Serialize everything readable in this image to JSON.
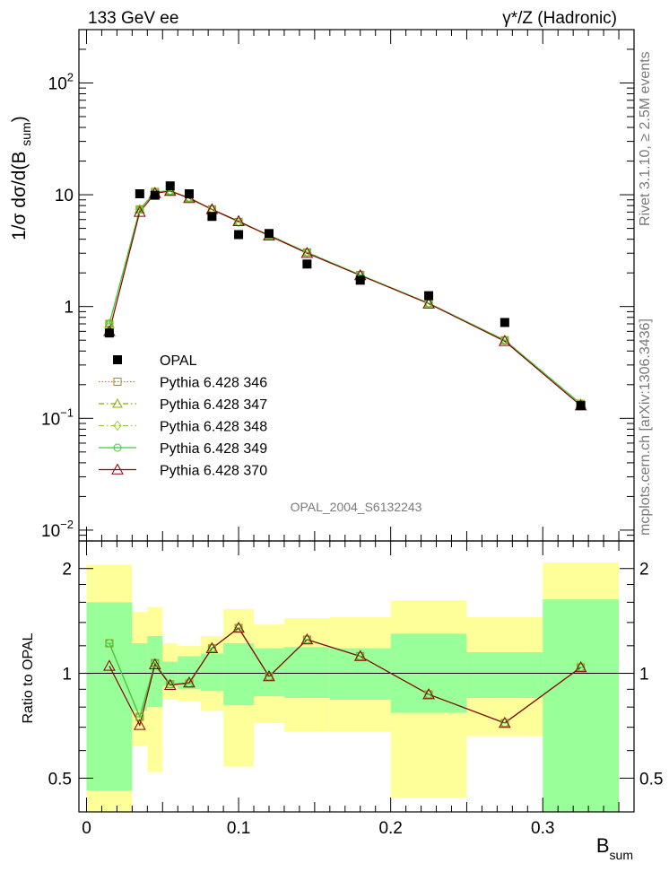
{
  "header": {
    "left": "133 GeV ee",
    "right": "γ*/Z (Hadronic)"
  },
  "side_text": {
    "rivet": "Rivet 3.1.10, ≥ 2.5M events",
    "mcplots": "mcplots.cern.ch [arXiv:1306.3436]"
  },
  "analysis_id": "OPAL_2004_S6132243",
  "colors": {
    "data": "#000000",
    "p346": "#b8860b",
    "p347": "#8aa800",
    "p348": "#9acd32",
    "p349": "#3ccc3c",
    "p370": "#8b0000",
    "band_yellow": "#ffff99",
    "band_green": "#99ff99"
  },
  "chart_data": [
    {
      "type": "scatter",
      "panel": "main",
      "ylabel": "1/σ dσ/d(B_sum)",
      "yscale": "log",
      "ylim": [
        0.008,
        300
      ],
      "xlim": [
        -0.005,
        0.36
      ],
      "yticks": [
        {
          "value": 100,
          "base": "10",
          "exp": "2"
        },
        {
          "value": 10,
          "base": "10",
          "exp": ""
        },
        {
          "value": 1,
          "base": "1",
          "exp": ""
        },
        {
          "value": 0.1,
          "base": "10",
          "exp": "−1"
        },
        {
          "value": 0.01,
          "base": "10",
          "exp": "−2"
        }
      ],
      "legend_position": "bottom-left",
      "data": {
        "name": "OPAL",
        "x": [
          0.015,
          0.035,
          0.045,
          0.055,
          0.0675,
          0.0825,
          0.1,
          0.12,
          0.145,
          0.18,
          0.225,
          0.275,
          0.325
        ],
        "y": [
          0.58,
          10.2,
          9.9,
          12.0,
          10.2,
          6.4,
          4.4,
          4.5,
          2.4,
          1.72,
          1.25,
          0.72,
          0.13
        ]
      },
      "series": [
        {
          "name": "Pythia 6.428 346",
          "style": "dotted",
          "marker": "square",
          "color_key": "p346",
          "y": [
            0.7,
            7.4,
            10.6,
            10.8,
            9.4,
            7.4,
            5.7,
            4.35,
            3.05,
            1.92,
            1.07,
            0.5,
            0.135
          ]
        },
        {
          "name": "Pythia 6.428 347",
          "style": "dashdot",
          "marker": "triangle",
          "color_key": "p347",
          "y": [
            0.7,
            7.4,
            10.6,
            10.8,
            9.4,
            7.4,
            5.7,
            4.35,
            3.05,
            1.92,
            1.07,
            0.5,
            0.135
          ]
        },
        {
          "name": "Pythia 6.428 348",
          "style": "dashdot",
          "marker": "diamond",
          "color_key": "p348",
          "y": [
            0.7,
            7.4,
            10.6,
            10.8,
            9.4,
            7.4,
            5.7,
            4.35,
            3.05,
            1.92,
            1.07,
            0.5,
            0.135
          ]
        },
        {
          "name": "Pythia 6.428 349",
          "style": "solid",
          "marker": "circle",
          "color_key": "p349",
          "y": [
            0.7,
            7.4,
            10.6,
            10.8,
            9.4,
            7.4,
            5.7,
            4.35,
            3.05,
            1.92,
            1.07,
            0.5,
            0.135
          ]
        },
        {
          "name": "Pythia 6.428 370",
          "style": "solid",
          "marker": "open-triangle",
          "color_key": "p370",
          "y": [
            0.6,
            7.0,
            10.3,
            10.8,
            9.3,
            7.4,
            5.8,
            4.3,
            3.0,
            1.9,
            1.06,
            0.49,
            0.13
          ]
        }
      ]
    },
    {
      "type": "line",
      "panel": "ratio",
      "ylabel": "Ratio to OPAL",
      "xlabel": "B_sum",
      "yscale": "log",
      "ylim": [
        0.4,
        2.4
      ],
      "xlim": [
        -0.005,
        0.36
      ],
      "yticks": [
        {
          "value": 0.5,
          "label": "0.5"
        },
        {
          "value": 1,
          "label": "1"
        },
        {
          "value": 2,
          "label": "2"
        }
      ],
      "xticks": [
        {
          "value": 0,
          "label": "0"
        },
        {
          "value": 0.1,
          "label": "0.1"
        },
        {
          "value": 0.2,
          "label": "0.2"
        },
        {
          "value": 0.3,
          "label": "0.3"
        }
      ],
      "bins": [
        {
          "lo": 0.0,
          "hi": 0.03,
          "y_lo": 0.3,
          "y_hi": 2.05,
          "g_lo": 0.46,
          "g_hi": 1.6
        },
        {
          "lo": 0.03,
          "hi": 0.04,
          "y_lo": 0.62,
          "y_hi": 1.5,
          "g_lo": 0.78,
          "g_hi": 1.22
        },
        {
          "lo": 0.04,
          "hi": 0.05,
          "y_lo": 0.52,
          "y_hi": 1.55,
          "g_lo": 0.8,
          "g_hi": 1.28
        },
        {
          "lo": 0.05,
          "hi": 0.06,
          "y_lo": 0.84,
          "y_hi": 1.22,
          "g_lo": 0.92,
          "g_hi": 1.08
        },
        {
          "lo": 0.06,
          "hi": 0.075,
          "y_lo": 0.83,
          "y_hi": 1.2,
          "g_lo": 0.9,
          "g_hi": 1.12
        },
        {
          "lo": 0.075,
          "hi": 0.09,
          "y_lo": 0.78,
          "y_hi": 1.28,
          "g_lo": 0.89,
          "g_hi": 1.14
        },
        {
          "lo": 0.09,
          "hi": 0.11,
          "y_lo": 0.54,
          "y_hi": 1.53,
          "g_lo": 0.81,
          "g_hi": 1.22
        },
        {
          "lo": 0.11,
          "hi": 0.13,
          "y_lo": 0.72,
          "y_hi": 1.38,
          "g_lo": 0.86,
          "g_hi": 1.18
        },
        {
          "lo": 0.13,
          "hi": 0.16,
          "y_lo": 0.68,
          "y_hi": 1.44,
          "g_lo": 0.85,
          "g_hi": 1.19
        },
        {
          "lo": 0.16,
          "hi": 0.2,
          "y_lo": 0.68,
          "y_hi": 1.45,
          "g_lo": 0.84,
          "g_hi": 1.18
        },
        {
          "lo": 0.2,
          "hi": 0.25,
          "y_lo": 0.44,
          "y_hi": 1.62,
          "g_lo": 0.77,
          "g_hi": 1.3
        },
        {
          "lo": 0.25,
          "hi": 0.3,
          "y_lo": 0.66,
          "y_hi": 1.45,
          "g_lo": 0.85,
          "g_hi": 1.15
        },
        {
          "lo": 0.3,
          "hi": 0.35,
          "y_lo": 0.3,
          "y_hi": 2.08,
          "g_lo": 0.39,
          "g_hi": 1.63
        }
      ],
      "x": [
        0.015,
        0.035,
        0.045,
        0.055,
        0.0675,
        0.0825,
        0.1,
        0.12,
        0.145,
        0.18,
        0.225,
        0.275,
        0.325
      ],
      "series": [
        {
          "name": "Pythia 6.428 346",
          "color_key": "p346",
          "values": [
            1.22,
            0.75,
            1.07,
            0.93,
            0.935,
            1.18,
            1.35,
            0.98,
            1.25,
            1.12,
            0.87,
            0.72,
            1.04
          ]
        },
        {
          "name": "Pythia 6.428 349",
          "color_key": "p349",
          "values": [
            1.22,
            0.75,
            1.07,
            0.93,
            0.935,
            1.18,
            1.35,
            0.98,
            1.25,
            1.12,
            0.87,
            0.72,
            1.04
          ]
        },
        {
          "name": "Pythia 6.428 370",
          "color_key": "p370",
          "values": [
            1.05,
            0.71,
            1.06,
            0.925,
            0.94,
            1.18,
            1.35,
            0.98,
            1.25,
            1.12,
            0.87,
            0.72,
            1.04
          ]
        }
      ]
    }
  ]
}
